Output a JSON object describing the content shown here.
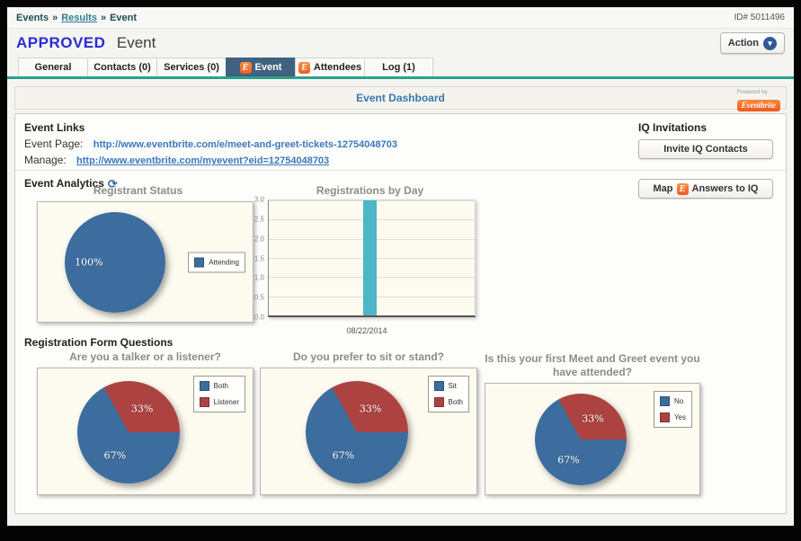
{
  "colors": {
    "accent_teal": "#2aa28b",
    "active_tab": "#40627e",
    "approved_blue": "#2b2bd5",
    "heading_blue": "#3878ad",
    "link_blue": "#3a79bc",
    "chevron_blue": "#30599c",
    "brand_orange": "#f1561f",
    "pie_blue": "#3d6d9e",
    "pie_red": "#ad4341",
    "bar_teal": "#4cb6c6"
  },
  "breadcrumb": {
    "items": [
      "Events",
      "Results",
      "Event"
    ],
    "separator": "»"
  },
  "header": {
    "id_label": "ID# 5011496",
    "status": "APPROVED",
    "title": "Event",
    "action_button": "Action"
  },
  "tabs": [
    {
      "label": "General"
    },
    {
      "label": "Contacts (0)"
    },
    {
      "label": "Services (0)"
    },
    {
      "label": "Event",
      "icon": "eventbrite",
      "active": true
    },
    {
      "label": "Attendees",
      "icon": "eventbrite"
    },
    {
      "label": "Log (1)"
    }
  ],
  "dashboard": {
    "title": "Event Dashboard",
    "powered_by": "Powered by",
    "brand": "Eventbrite"
  },
  "event_links": {
    "heading": "Event Links",
    "rows": [
      {
        "label": "Event Page:",
        "url": "http://www.eventbrite.com/e/meet-and-greet-tickets-12754048703"
      },
      {
        "label": "Manage:",
        "url": "http://www.eventbrite.com/myevent?eid=12754048703"
      }
    ]
  },
  "iq_invitations": {
    "heading": "IQ Invitations",
    "button": "Invite IQ Contacts"
  },
  "event_analytics": {
    "heading": "Event Analytics",
    "map_button_prefix": "Map",
    "map_button_suffix": "Answers to IQ"
  },
  "registration_questions": {
    "heading": "Registration Form Questions"
  },
  "chart_data": [
    {
      "type": "pie",
      "title": "Registrant Status",
      "legend_position": "right-middle",
      "slices": [
        {
          "label": "Attending",
          "value": 100,
          "color": "#3d6d9e"
        }
      ]
    },
    {
      "type": "bar",
      "title": "Registrations by Day",
      "categories": [
        "08/22/2014"
      ],
      "values": [
        3
      ],
      "ylim": [
        0,
        3
      ],
      "yticks": [
        0.0,
        0.5,
        1.0,
        1.5,
        2.0,
        2.5,
        3.0
      ],
      "bar_color": "#4cb6c6",
      "grid": true,
      "xlabel": "",
      "ylabel": ""
    },
    {
      "type": "pie",
      "title": "Are you a talker or a listener?",
      "legend_position": "top-right",
      "slices": [
        {
          "label": "Both",
          "value": 67,
          "color": "#3d6d9e"
        },
        {
          "label": "Listener",
          "value": 33,
          "color": "#ad4341"
        }
      ]
    },
    {
      "type": "pie",
      "title": "Do you prefer to sit or stand?",
      "legend_position": "top-right",
      "slices": [
        {
          "label": "Sit",
          "value": 67,
          "color": "#3d6d9e"
        },
        {
          "label": "Both",
          "value": 33,
          "color": "#ad4341"
        }
      ]
    },
    {
      "type": "pie",
      "title": "Is this your first Meet and Greet event you have attended?",
      "legend_position": "top-right",
      "slices": [
        {
          "label": "No",
          "value": 67,
          "color": "#3d6d9e"
        },
        {
          "label": "Yes",
          "value": 33,
          "color": "#ad4341"
        }
      ]
    }
  ]
}
